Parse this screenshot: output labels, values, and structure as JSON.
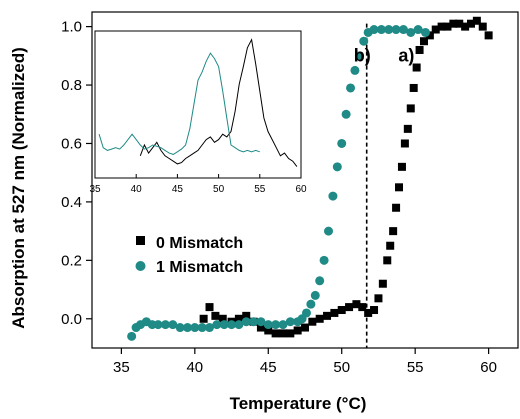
{
  "chart_data": {
    "type": "scatter",
    "xlabel": "Temperature (°C)",
    "ylabel": "Absorption at 527 nm (Normalized)",
    "xlim": [
      33,
      62
    ],
    "ylim": [
      -0.1,
      1.05
    ],
    "x_ticks": [
      35,
      40,
      45,
      50,
      55,
      60
    ],
    "y_ticks": [
      0.0,
      0.2,
      0.4,
      0.6,
      0.8,
      1.0
    ],
    "x_tick_labels": [
      "35",
      "40",
      "45",
      "50",
      "55",
      "60"
    ],
    "y_tick_labels": [
      "0.0",
      "0.2",
      "0.4",
      "0.6",
      "0.8",
      "1.0"
    ],
    "grid": false,
    "legend_position": "center-left",
    "colors": {
      "series_0": "#000000",
      "series_1": "#1f8a86",
      "dashed_line": "#000000"
    },
    "series": [
      {
        "name": "0 Mismatch",
        "marker": "square",
        "points": [
          [
            40.6,
            0.0
          ],
          [
            41.0,
            0.04
          ],
          [
            41.4,
            0.01
          ],
          [
            41.9,
            0.0
          ],
          [
            42.5,
            -0.01
          ],
          [
            43.0,
            0.0
          ],
          [
            43.5,
            0.01
          ],
          [
            44.0,
            -0.01
          ],
          [
            44.5,
            -0.03
          ],
          [
            45.0,
            -0.04
          ],
          [
            45.5,
            -0.05
          ],
          [
            46.0,
            -0.05
          ],
          [
            46.5,
            -0.05
          ],
          [
            47.0,
            -0.04
          ],
          [
            47.5,
            -0.03
          ],
          [
            48.0,
            -0.01
          ],
          [
            48.5,
            0.0
          ],
          [
            49.0,
            0.01
          ],
          [
            49.5,
            0.02
          ],
          [
            50.0,
            0.03
          ],
          [
            50.5,
            0.04
          ],
          [
            51.0,
            0.05
          ],
          [
            51.4,
            0.04
          ],
          [
            51.8,
            0.02
          ],
          [
            52.2,
            0.03
          ],
          [
            52.5,
            0.07
          ],
          [
            52.8,
            0.12
          ],
          [
            53.1,
            0.2
          ],
          [
            53.3,
            0.25
          ],
          [
            53.5,
            0.3
          ],
          [
            53.7,
            0.38
          ],
          [
            53.9,
            0.45
          ],
          [
            54.1,
            0.52
          ],
          [
            54.3,
            0.6
          ],
          [
            54.5,
            0.65
          ],
          [
            54.7,
            0.72
          ],
          [
            54.9,
            0.79
          ],
          [
            55.1,
            0.86
          ],
          [
            55.3,
            0.92
          ],
          [
            55.6,
            0.95
          ],
          [
            56.0,
            0.97
          ],
          [
            56.4,
            0.99
          ],
          [
            56.8,
            1.0
          ],
          [
            57.2,
            1.0
          ],
          [
            57.6,
            1.01
          ],
          [
            58.0,
            1.01
          ],
          [
            58.4,
            1.0
          ],
          [
            58.8,
            1.01
          ],
          [
            59.2,
            1.02
          ],
          [
            59.6,
            1.0
          ],
          [
            60.0,
            0.97
          ]
        ]
      },
      {
        "name": "1 Mismatch",
        "marker": "circle",
        "points": [
          [
            35.7,
            -0.06
          ],
          [
            36.0,
            -0.03
          ],
          [
            36.3,
            -0.02
          ],
          [
            36.7,
            -0.01
          ],
          [
            37.1,
            -0.02
          ],
          [
            37.5,
            -0.02
          ],
          [
            38.0,
            -0.02
          ],
          [
            38.5,
            -0.02
          ],
          [
            39.0,
            -0.03
          ],
          [
            39.5,
            -0.03
          ],
          [
            40.0,
            -0.03
          ],
          [
            40.5,
            -0.03
          ],
          [
            41.0,
            -0.03
          ],
          [
            41.5,
            -0.02
          ],
          [
            42.0,
            -0.02
          ],
          [
            42.5,
            -0.02
          ],
          [
            43.0,
            -0.02
          ],
          [
            43.5,
            -0.01
          ],
          [
            44.0,
            -0.01
          ],
          [
            44.5,
            -0.01
          ],
          [
            45.0,
            -0.02
          ],
          [
            45.5,
            -0.02
          ],
          [
            46.0,
            -0.02
          ],
          [
            46.5,
            -0.01
          ],
          [
            47.0,
            -0.01
          ],
          [
            47.3,
            0.0
          ],
          [
            47.6,
            0.02
          ],
          [
            47.9,
            0.05
          ],
          [
            48.2,
            0.08
          ],
          [
            48.5,
            0.13
          ],
          [
            48.8,
            0.2
          ],
          [
            49.1,
            0.3
          ],
          [
            49.4,
            0.42
          ],
          [
            49.7,
            0.52
          ],
          [
            50.0,
            0.6
          ],
          [
            50.3,
            0.7
          ],
          [
            50.6,
            0.79
          ],
          [
            50.9,
            0.85
          ],
          [
            51.2,
            0.9
          ],
          [
            51.5,
            0.95
          ],
          [
            51.8,
            0.98
          ],
          [
            52.2,
            0.99
          ],
          [
            52.7,
            0.99
          ],
          [
            53.2,
            0.99
          ],
          [
            53.7,
            0.99
          ],
          [
            54.2,
            0.99
          ],
          [
            54.7,
            0.98
          ],
          [
            55.2,
            0.99
          ],
          [
            55.7,
            0.98
          ]
        ]
      }
    ],
    "reference_line": {
      "x": 51.7,
      "style": "dashed"
    },
    "annotations": [
      {
        "text": "a)",
        "x": 54.4,
        "y": 0.88
      },
      {
        "text": "b)",
        "x": 51.4,
        "y": 0.88
      }
    ],
    "inset": {
      "xlim": [
        35,
        60
      ],
      "x_ticks": [
        35,
        40,
        45,
        50,
        55,
        60
      ],
      "x_tick_labels": [
        "35",
        "40",
        "45",
        "50",
        "55",
        "60"
      ],
      "ylim": [
        0,
        1
      ],
      "series": [
        {
          "color": "#000000",
          "points": [
            [
              40.5,
              0.12
            ],
            [
              41.0,
              0.2
            ],
            [
              41.5,
              0.14
            ],
            [
              42.0,
              0.18
            ],
            [
              42.5,
              0.22
            ],
            [
              43.0,
              0.16
            ],
            [
              43.5,
              0.12
            ],
            [
              44.0,
              0.1
            ],
            [
              44.5,
              0.08
            ],
            [
              45.0,
              0.06
            ],
            [
              45.5,
              0.07
            ],
            [
              46.0,
              0.1
            ],
            [
              46.5,
              0.12
            ],
            [
              47.0,
              0.14
            ],
            [
              47.5,
              0.16
            ],
            [
              48.0,
              0.2
            ],
            [
              48.5,
              0.24
            ],
            [
              49.0,
              0.26
            ],
            [
              49.5,
              0.22
            ],
            [
              50.0,
              0.24
            ],
            [
              50.5,
              0.28
            ],
            [
              51.0,
              0.26
            ],
            [
              51.5,
              0.3
            ],
            [
              52.0,
              0.45
            ],
            [
              52.5,
              0.65
            ],
            [
              53.0,
              0.78
            ],
            [
              53.5,
              0.92
            ],
            [
              54.0,
              0.98
            ],
            [
              54.5,
              0.8
            ],
            [
              55.0,
              0.6
            ],
            [
              55.5,
              0.4
            ],
            [
              56.0,
              0.3
            ],
            [
              56.5,
              0.24
            ],
            [
              57.0,
              0.18
            ],
            [
              57.5,
              0.12
            ],
            [
              58.0,
              0.14
            ],
            [
              58.5,
              0.1
            ],
            [
              59.0,
              0.08
            ],
            [
              59.5,
              0.04
            ]
          ]
        },
        {
          "color": "#1f8a86",
          "points": [
            [
              35.5,
              0.28
            ],
            [
              36.0,
              0.18
            ],
            [
              36.5,
              0.16
            ],
            [
              37.0,
              0.17
            ],
            [
              37.5,
              0.18
            ],
            [
              38.0,
              0.17
            ],
            [
              38.5,
              0.2
            ],
            [
              39.0,
              0.24
            ],
            [
              39.5,
              0.28
            ],
            [
              40.0,
              0.24
            ],
            [
              40.5,
              0.2
            ],
            [
              41.0,
              0.17
            ],
            [
              41.5,
              0.18
            ],
            [
              42.0,
              0.2
            ],
            [
              42.5,
              0.19
            ],
            [
              43.0,
              0.18
            ],
            [
              43.5,
              0.16
            ],
            [
              44.0,
              0.14
            ],
            [
              44.5,
              0.13
            ],
            [
              45.0,
              0.15
            ],
            [
              45.5,
              0.17
            ],
            [
              46.0,
              0.2
            ],
            [
              46.5,
              0.32
            ],
            [
              47.0,
              0.5
            ],
            [
              47.5,
              0.68
            ],
            [
              48.0,
              0.74
            ],
            [
              48.5,
              0.82
            ],
            [
              49.0,
              0.88
            ],
            [
              49.5,
              0.84
            ],
            [
              50.0,
              0.78
            ],
            [
              50.5,
              0.6
            ],
            [
              51.0,
              0.4
            ],
            [
              51.5,
              0.2
            ],
            [
              52.0,
              0.18
            ],
            [
              52.5,
              0.16
            ],
            [
              53.0,
              0.15
            ],
            [
              53.5,
              0.16
            ],
            [
              54.0,
              0.15
            ],
            [
              54.5,
              0.16
            ],
            [
              55.0,
              0.15
            ]
          ]
        }
      ]
    }
  }
}
